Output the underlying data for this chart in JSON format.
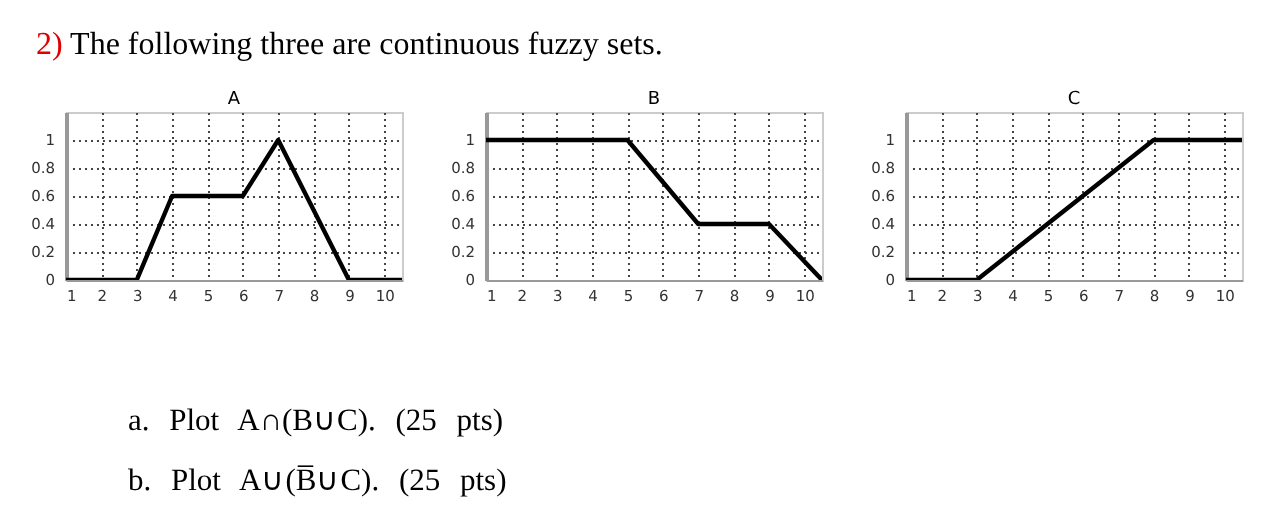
{
  "chart_data": [
    {
      "type": "line",
      "title": "A",
      "annotations": [
        "2) The following three are continuous fuzzy sets."
      ],
      "x": [
        1,
        3,
        4,
        6,
        7,
        9,
        10.5
      ],
      "series": [
        {
          "color": "#000000",
          "values": [
            0,
            0,
            0.6,
            0.6,
            1,
            0,
            0
          ]
        }
      ],
      "xlim": [
        1,
        10.5
      ],
      "xticks": [
        1,
        2,
        3,
        4,
        5,
        6,
        7,
        8,
        9,
        10
      ],
      "ylim": [
        0,
        1.2
      ],
      "yticks": [
        0,
        0.2,
        0.4,
        0.6,
        0.8,
        1
      ],
      "grid": true
    },
    {
      "type": "line",
      "title": "B",
      "x": [
        1,
        5,
        7,
        9,
        10.5
      ],
      "series": [
        {
          "color": "#000000",
          "values": [
            1,
            1,
            0.4,
            0.4,
            0
          ]
        }
      ],
      "xlim": [
        1,
        10.5
      ],
      "xticks": [
        1,
        2,
        3,
        4,
        5,
        6,
        7,
        8,
        9,
        10
      ],
      "ylim": [
        0,
        1.2
      ],
      "yticks": [
        0,
        0.2,
        0.4,
        0.6,
        0.8,
        1
      ],
      "grid": true
    },
    {
      "type": "line",
      "title": "C",
      "annotations": [
        "a. Plot A∩(B∪C). (25 pts)",
        "b. Plot A∪(B̅∪C). (25 pts)"
      ],
      "x": [
        1,
        3,
        8,
        10.5
      ],
      "series": [
        {
          "color": "#000000",
          "values": [
            0,
            0,
            1,
            1
          ]
        }
      ],
      "xlim": [
        1,
        10.5
      ],
      "xticks": [
        1,
        2,
        3,
        4,
        5,
        6,
        7,
        8,
        9,
        10
      ],
      "ylim": [
        0,
        1.2
      ],
      "yticks": [
        0,
        0.2,
        0.4,
        0.6,
        0.8,
        1
      ],
      "grid": true
    }
  ]
}
